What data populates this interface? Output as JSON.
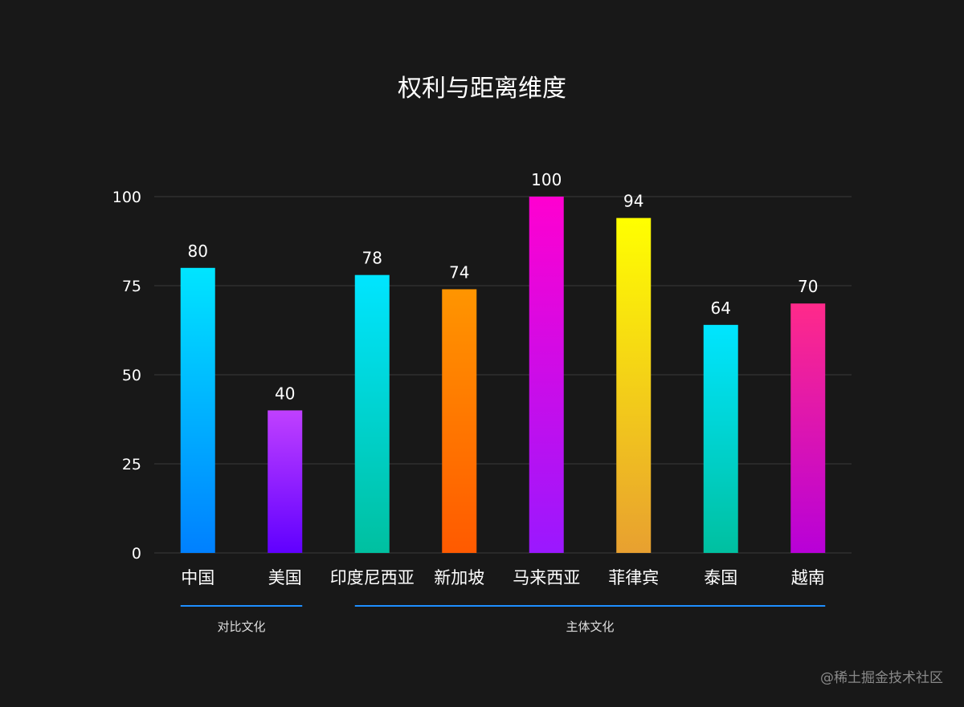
{
  "chart_data": {
    "type": "bar",
    "title": "权利与距离维度",
    "categories": [
      "中国",
      "美国",
      "印度尼西亚",
      "新加坡",
      "马来西亚",
      "菲律宾",
      "泰国",
      "越南"
    ],
    "values": [
      80,
      40,
      78,
      74,
      100,
      94,
      64,
      70
    ],
    "ylim": [
      0,
      100
    ],
    "yticks": [
      0,
      25,
      50,
      75,
      100
    ],
    "grid": true,
    "bar_gradients": [
      [
        "#00e5ff",
        "#0080ff"
      ],
      [
        "#c040ff",
        "#6000ff"
      ],
      [
        "#00e5ff",
        "#00c0a0"
      ],
      [
        "#ff9500",
        "#ff5a00"
      ],
      [
        "#ff00d0",
        "#9a18ff"
      ],
      [
        "#ffff00",
        "#e8a030"
      ],
      [
        "#00e5ff",
        "#00c0a0"
      ],
      [
        "#ff2a8a",
        "#b800d8"
      ]
    ],
    "groups": [
      {
        "label": "对比文化",
        "start": 0,
        "end": 1
      },
      {
        "label": "主体文化",
        "start": 2,
        "end": 7
      }
    ]
  },
  "watermark": "@稀土掘金技术社区"
}
